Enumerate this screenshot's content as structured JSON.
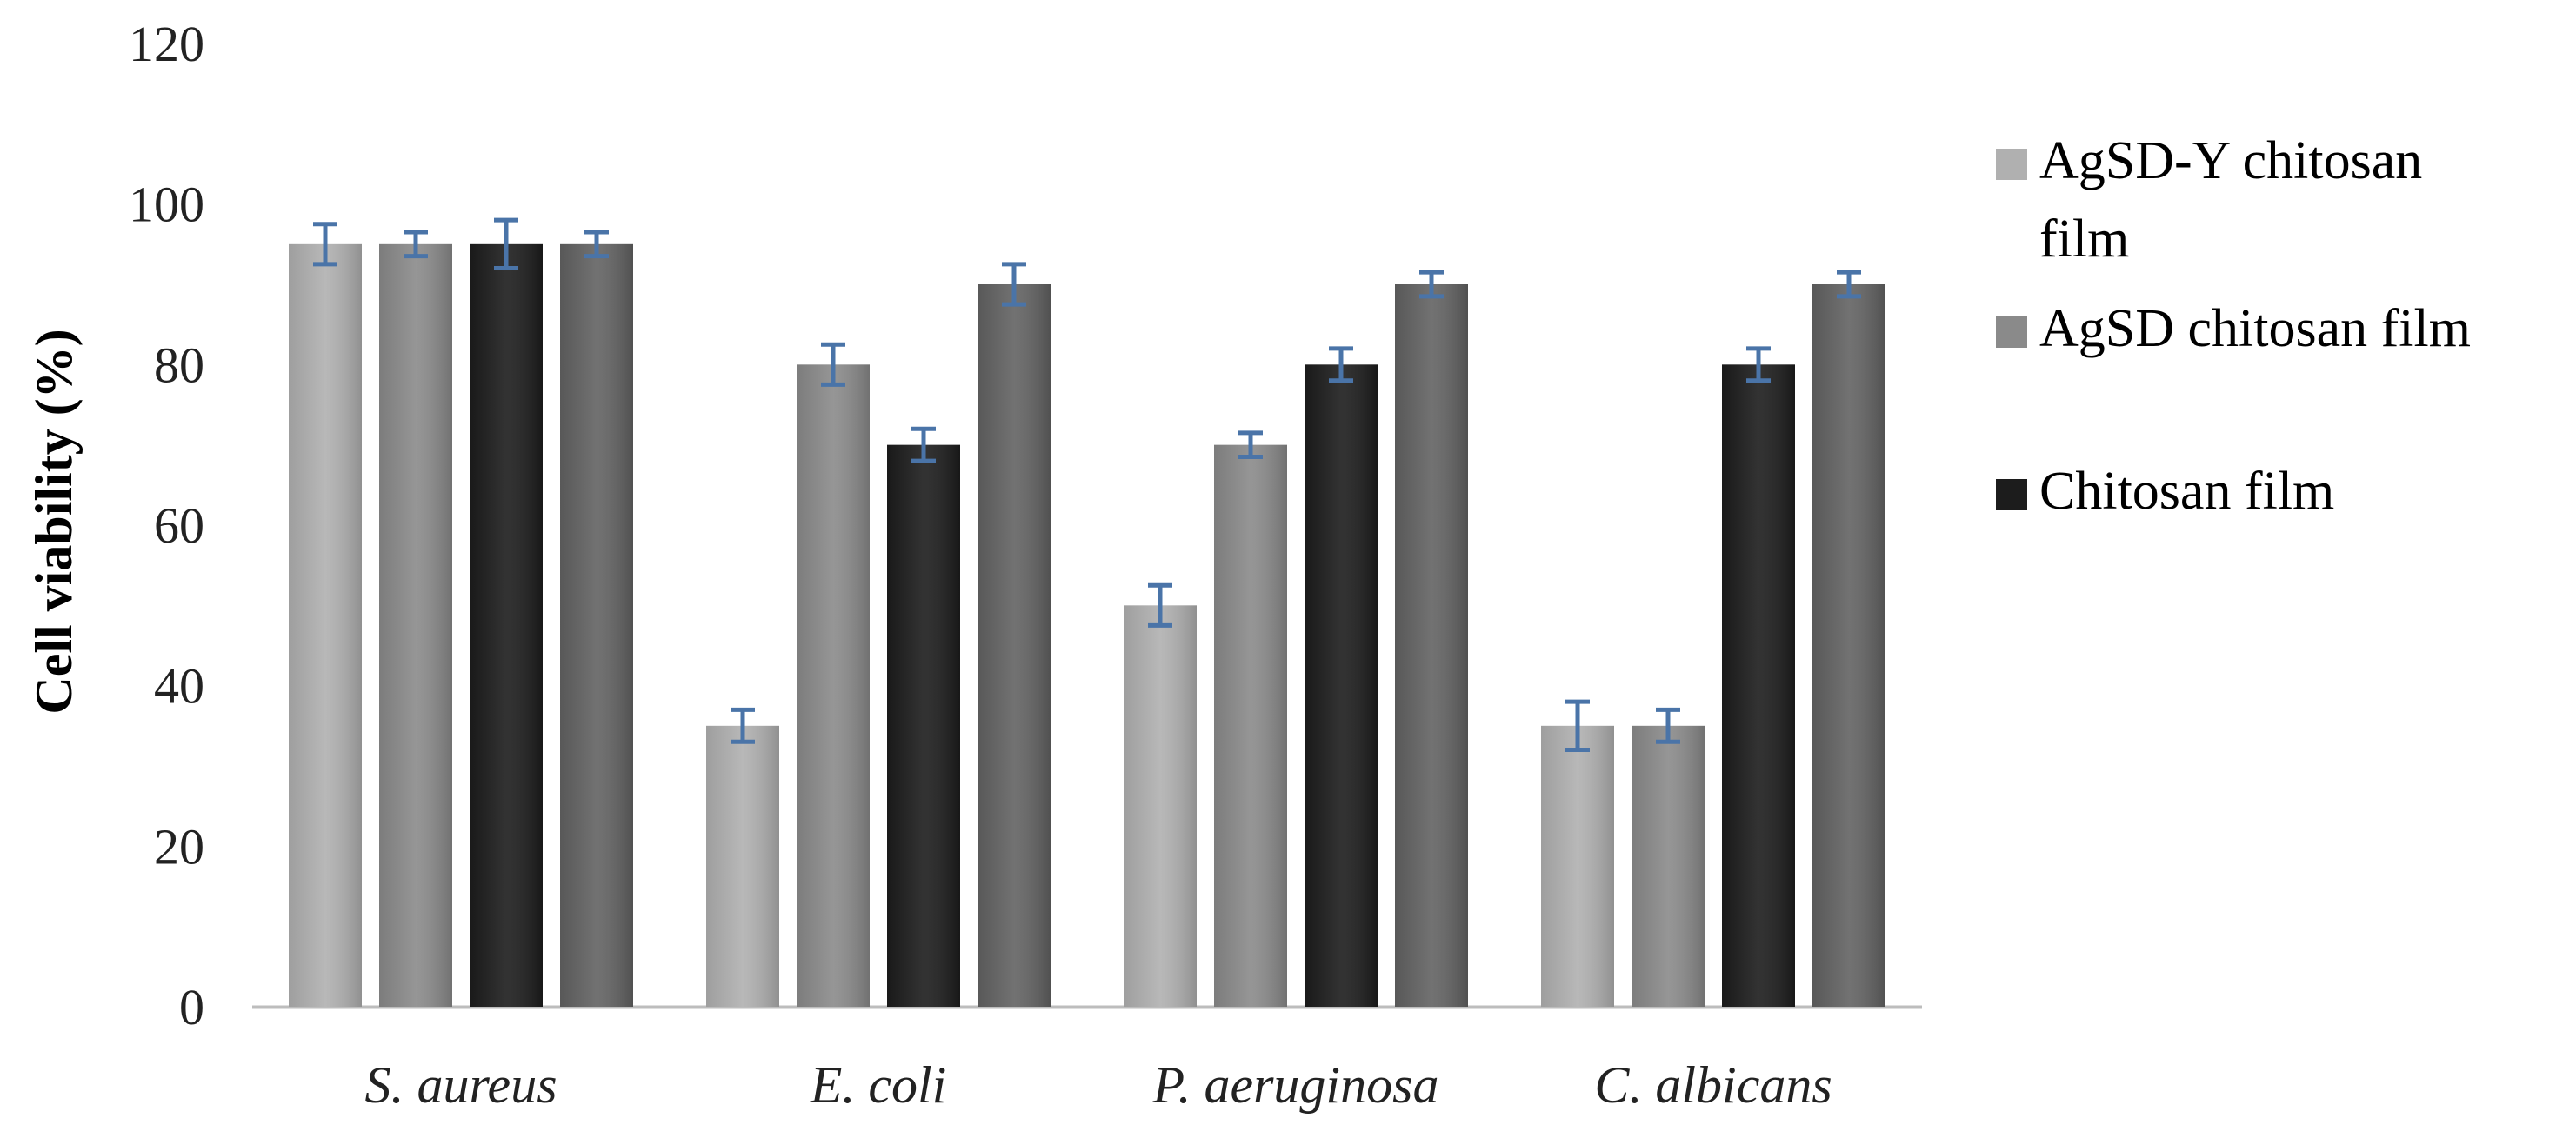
{
  "chart_data": {
    "type": "bar",
    "title": "",
    "xlabel": "",
    "ylabel": "Cell viability (%)",
    "ylim": [
      0,
      120
    ],
    "yticks": [
      "0",
      "20",
      "40",
      "60",
      "80",
      "100",
      "120"
    ],
    "grid": false,
    "legend_position": "right",
    "categories": [
      "S. aureus",
      "E. coli",
      "P. aeruginosa",
      "C. albicans"
    ],
    "series": [
      {
        "name": "AgSD-Y chitosan film",
        "values": [
          95,
          35,
          50,
          35
        ],
        "errors": [
          2.5,
          2,
          2.5,
          3
        ],
        "color": "#b0b0b0"
      },
      {
        "name": "AgSD chitosan film",
        "values": [
          95,
          80,
          70,
          35
        ],
        "errors": [
          1.5,
          2.5,
          1.5,
          2
        ],
        "color": "#8a8a8a"
      },
      {
        "name": "Chitosan film",
        "values": [
          95,
          70,
          80,
          80
        ],
        "errors": [
          3,
          2,
          2,
          2
        ],
        "color": "#1c1c1c"
      },
      {
        "name": "",
        "values": [
          95,
          90,
          90,
          90
        ],
        "errors": [
          1.5,
          2.5,
          1.5,
          1.5
        ],
        "color": "#626262"
      }
    ],
    "legend": [
      {
        "lines": [
          "AgSD-Y chitosan",
          "film"
        ],
        "color": "#b0b0b0"
      },
      {
        "lines": [
          "AgSD chitosan film"
        ],
        "color": "#8a8a8a"
      },
      {
        "lines": [
          "Chitosan film"
        ],
        "color": "#1c1c1c"
      }
    ],
    "error_bar_color": "#4a74a8"
  }
}
